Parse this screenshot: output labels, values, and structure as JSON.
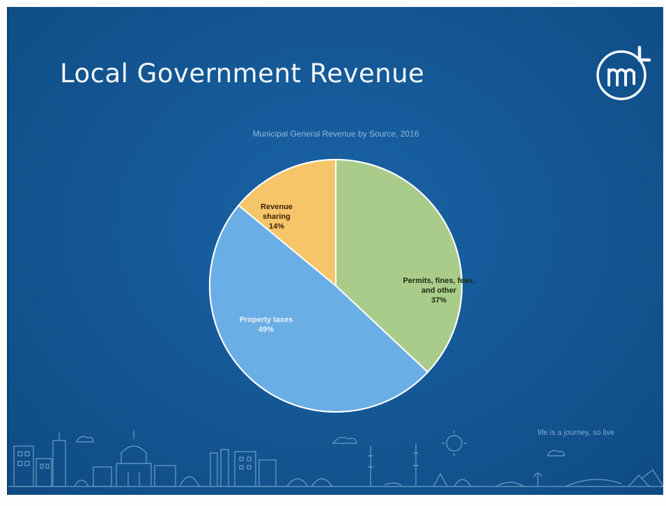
{
  "slide": {
    "title": "Local Government Revenue",
    "logo_icon": "mml-logo-icon",
    "tagline": "life is a journey, so live"
  },
  "colors": {
    "background": "#155896",
    "permits": "#a9cc8b",
    "property": "#6aaee6",
    "revenue": "#f6c56a",
    "slice_border": "#ffffff"
  },
  "chart_data": {
    "type": "pie",
    "title": "Municipal General Revenue by Source, 2016",
    "slices": [
      {
        "lines": [
          "Permits, fines, fees,",
          "and other"
        ],
        "pct_label": "37%",
        "value": 37,
        "color": "#a9cc8b"
      },
      {
        "lines": [
          "Property taxes"
        ],
        "pct_label": "49%",
        "value": 49,
        "color": "#6aaee6"
      },
      {
        "lines": [
          "Revenue",
          "sharing"
        ],
        "pct_label": "14%",
        "value": 14,
        "color": "#f6c56a"
      }
    ],
    "legend": "none",
    "grid": false
  }
}
